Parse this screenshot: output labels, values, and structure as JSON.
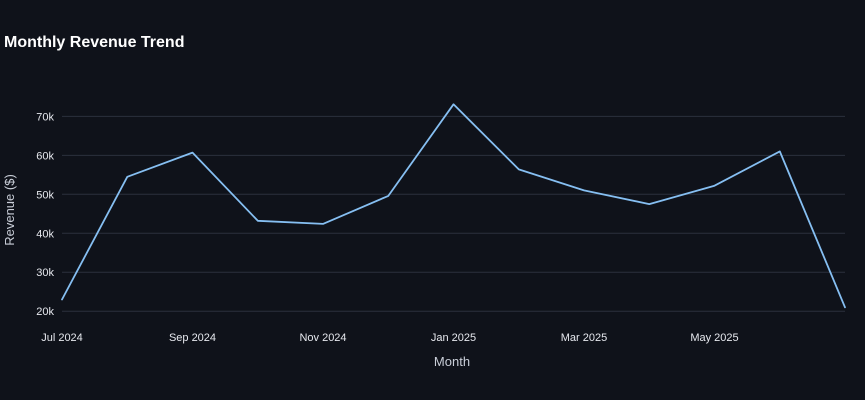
{
  "chart_data": {
    "type": "line",
    "title": "Monthly Revenue Trend",
    "xlabel": "Month",
    "ylabel": "Revenue ($)",
    "x": [
      "2024-07",
      "2024-08",
      "2024-09",
      "2024-10",
      "2024-11",
      "2024-12",
      "2025-01",
      "2025-02",
      "2025-03",
      "2025-04",
      "2025-05",
      "2025-06",
      "2025-07"
    ],
    "x_tick_labels": [
      {
        "x": "2024-07",
        "label": "Jul 2024"
      },
      {
        "x": "2024-09",
        "label": "Sep 2024"
      },
      {
        "x": "2024-11",
        "label": "Nov 2024"
      },
      {
        "x": "2025-01",
        "label": "Jan 2025"
      },
      {
        "x": "2025-03",
        "label": "Mar 2025"
      },
      {
        "x": "2025-05",
        "label": "May 2025"
      }
    ],
    "y_ticks": [
      {
        "value": 20000,
        "label": "20k"
      },
      {
        "value": 30000,
        "label": "30k"
      },
      {
        "value": 40000,
        "label": "40k"
      },
      {
        "value": 50000,
        "label": "50k"
      },
      {
        "value": 60000,
        "label": "60k"
      },
      {
        "value": 70000,
        "label": "70k"
      }
    ],
    "ylim": [
      18000,
      76000
    ],
    "grid": true,
    "series": [
      {
        "values": [
          23000,
          54500,
          60700,
          43200,
          42400,
          49600,
          73100,
          56400,
          51000,
          47500,
          52200,
          61000,
          21000
        ],
        "color": "#86bff2"
      }
    ]
  }
}
